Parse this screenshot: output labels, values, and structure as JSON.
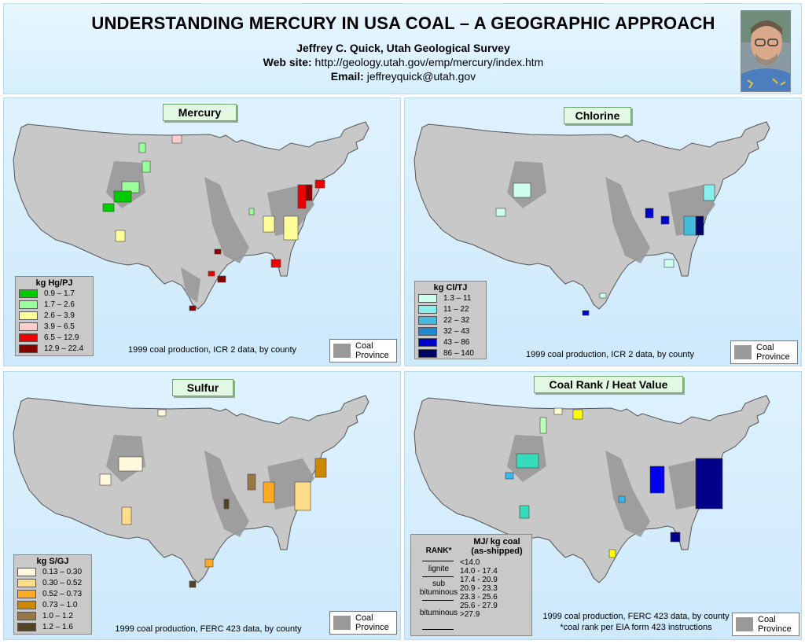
{
  "header": {
    "title": "UNDERSTANDING MERCURY IN USA COAL – A  GEOGRAPHIC APPROACH",
    "author": "Jeffrey C. Quick, Utah Geological Survey",
    "web_label": "Web site:",
    "web_url": "http://geology.utah.gov/emp/mercury/index.htm",
    "email_label": "Email:",
    "email": "jeffreyquick@utah.gov"
  },
  "colors": {
    "background_panel": "#d6efff",
    "land": "#c8c8c8",
    "coal_province": "#999999",
    "title_box": "#e2f8e2"
  },
  "province_label": "Coal Province",
  "panels": {
    "mercury": {
      "title": "Mercury",
      "caption": "1999 coal production, ICR 2 data, by county",
      "legend_title": "kg Hg/PJ",
      "legend": [
        {
          "label": "0.9 – 1.7",
          "color": "#00cc00"
        },
        {
          "label": "1.7 – 2.6",
          "color": "#99ff99"
        },
        {
          "label": "2.6 – 3.9",
          "color": "#ffff99"
        },
        {
          "label": "3.9 – 6.5",
          "color": "#ffcccc"
        },
        {
          "label": "6.5 – 12.9",
          "color": "#ee0000"
        },
        {
          "label": "12.9 – 22.4",
          "color": "#880000"
        }
      ]
    },
    "chlorine": {
      "title": "Chlorine",
      "caption": "1999 coal production, ICR 2 data, by county",
      "legend_title": "kg Cl/TJ",
      "legend": [
        {
          "label": "1.3 – 11",
          "color": "#ccffee"
        },
        {
          "label": "11 – 22",
          "color": "#88eeee"
        },
        {
          "label": "22 – 32",
          "color": "#44bbdd"
        },
        {
          "label": "32 – 43",
          "color": "#2288cc"
        },
        {
          "label": "43 – 86",
          "color": "#0000cc"
        },
        {
          "label": "86 – 140",
          "color": "#000066"
        }
      ]
    },
    "sulfur": {
      "title": "Sulfur",
      "caption": "1999 coal production, FERC 423 data, by county",
      "legend_title": "kg S/GJ",
      "legend": [
        {
          "label": "0.13 – 0.30",
          "color": "#fff8dd"
        },
        {
          "label": "0.30 – 0.52",
          "color": "#ffdd88"
        },
        {
          "label": "0.52 – 0.73",
          "color": "#ffaa22"
        },
        {
          "label": "0.73 – 1.0",
          "color": "#cc8800"
        },
        {
          "label": "1.0 – 1.2",
          "color": "#997744"
        },
        {
          "label": "1.2 – 1.6",
          "color": "#554422"
        }
      ]
    },
    "rank": {
      "title": "Coal Rank / Heat  Value",
      "caption_1": "1999 coal production, FERC 423 data, by county",
      "caption_2": "*coal rank per EIA form 423 instructions",
      "legend_title_1": "MJ/ kg coal",
      "legend_title_2": "(as-shipped)",
      "rank_header": "RANK*",
      "ranks": [
        "lignite",
        "sub",
        "bituminous",
        "bituminous"
      ],
      "legend": [
        {
          "label": "<14.0",
          "color": "#ffff00"
        },
        {
          "label": "14.0 - 17.4",
          "color": "#ffffcc"
        },
        {
          "label": "17.4 - 20.9",
          "color": "#bbffbb"
        },
        {
          "label": "20.9 - 23.3",
          "color": "#33ddbb"
        },
        {
          "label": "23.3 - 25.6",
          "color": "#33bbee"
        },
        {
          "label": "25.6 - 27.9",
          "color": "#0000ee"
        },
        {
          "label": ">27.9",
          "color": "#000088"
        }
      ]
    }
  }
}
